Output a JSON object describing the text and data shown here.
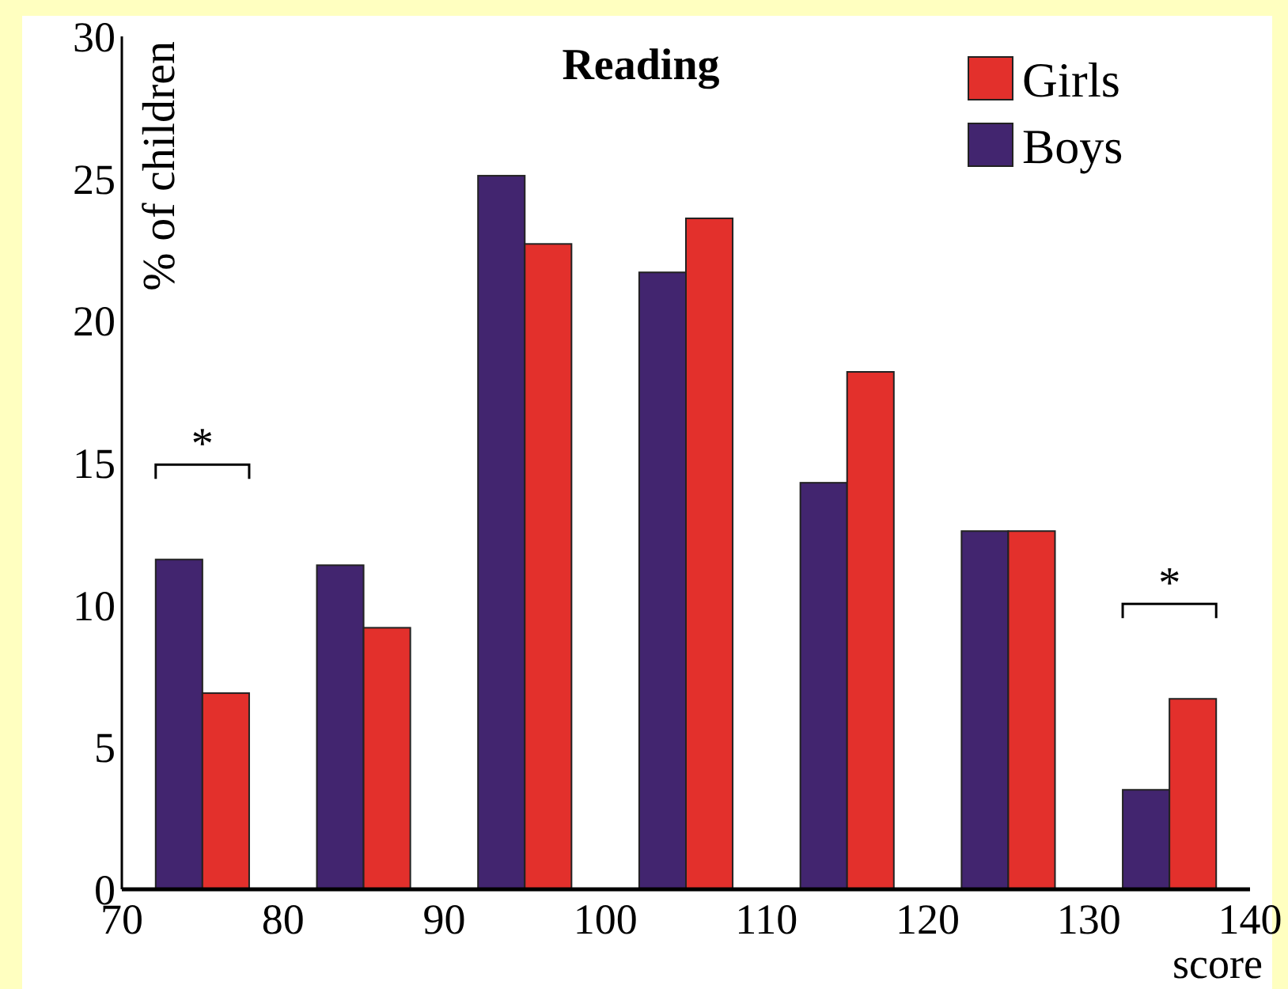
{
  "chart_data": {
    "type": "bar",
    "title": "Reading",
    "xlabel": "score",
    "ylabel": "% of children",
    "x": [
      75,
      85,
      95,
      105,
      115,
      125,
      135
    ],
    "series": [
      {
        "name": "Boys",
        "color": "#42256f",
        "values": [
          11.6,
          11.4,
          25.1,
          21.7,
          14.3,
          12.6,
          3.5
        ]
      },
      {
        "name": "Girls",
        "color": "#e3302c",
        "values": [
          6.9,
          9.2,
          22.7,
          23.6,
          18.2,
          12.6,
          6.7
        ]
      }
    ],
    "xlim": [
      70,
      140
    ],
    "xticks": [
      70,
      80,
      90,
      100,
      110,
      120,
      130,
      140
    ],
    "ylim": [
      0,
      30
    ],
    "yticks": [
      0,
      5,
      10,
      15,
      20,
      25,
      30
    ],
    "legend": "top right",
    "grid": false,
    "annotations": [
      "*",
      "*"
    ]
  }
}
